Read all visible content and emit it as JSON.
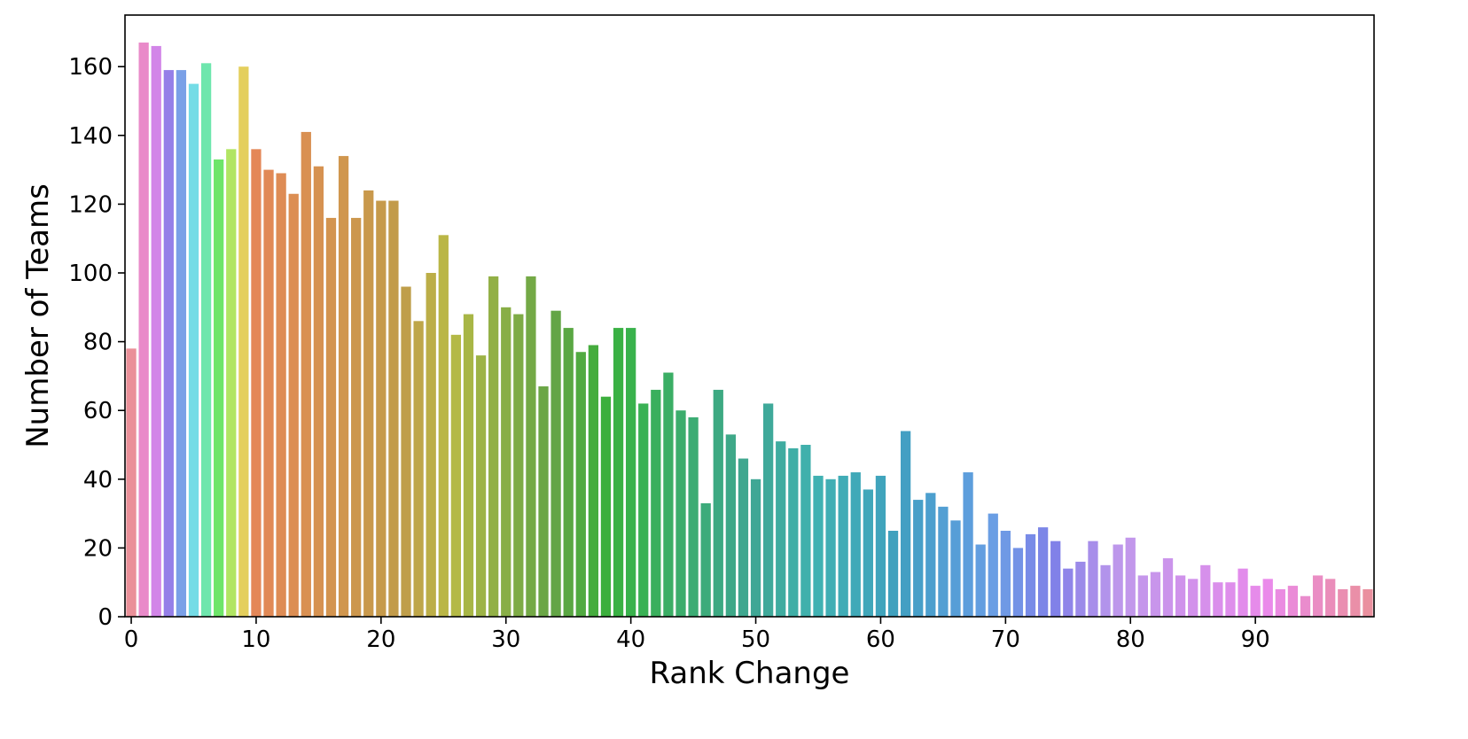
{
  "chart_data": {
    "type": "bar",
    "title": "",
    "xlabel": "Rank Change",
    "ylabel": "Number of Teams",
    "xlim": [
      -0.5,
      99.5
    ],
    "ylim": [
      0,
      175
    ],
    "grid": false,
    "x_ticks": [
      0,
      10,
      20,
      30,
      40,
      50,
      60,
      70,
      80,
      90
    ],
    "y_ticks": [
      0,
      20,
      40,
      60,
      80,
      100,
      120,
      140,
      160
    ],
    "x": [
      0,
      1,
      2,
      3,
      4,
      5,
      6,
      7,
      8,
      9,
      10,
      11,
      12,
      13,
      14,
      15,
      16,
      17,
      18,
      19,
      20,
      21,
      22,
      23,
      24,
      25,
      26,
      27,
      28,
      29,
      30,
      31,
      32,
      33,
      34,
      35,
      36,
      37,
      38,
      39,
      40,
      41,
      42,
      43,
      44,
      45,
      46,
      47,
      48,
      49,
      50,
      51,
      52,
      53,
      54,
      55,
      56,
      57,
      58,
      59,
      60,
      61,
      62,
      63,
      64,
      65,
      66,
      67,
      68,
      69,
      70,
      71,
      72,
      73,
      74,
      75,
      76,
      77,
      78,
      79,
      80,
      81,
      82,
      83,
      84,
      85,
      86,
      87,
      88,
      89,
      90,
      91,
      92,
      93,
      94,
      95,
      96,
      97,
      98,
      99
    ],
    "values": [
      78,
      167,
      166,
      159,
      159,
      155,
      161,
      133,
      136,
      160,
      136,
      130,
      129,
      123,
      141,
      131,
      116,
      134,
      116,
      124,
      121,
      121,
      96,
      86,
      100,
      111,
      82,
      88,
      76,
      99,
      90,
      88,
      99,
      67,
      89,
      84,
      77,
      79,
      64,
      84,
      84,
      62,
      66,
      71,
      60,
      58,
      33,
      66,
      53,
      46,
      40,
      62,
      51,
      49,
      50,
      41,
      40,
      41,
      42,
      37,
      41,
      25,
      54,
      34,
      36,
      32,
      28,
      42,
      21,
      30,
      25,
      20,
      24,
      26,
      22,
      14,
      16,
      22,
      15,
      21,
      23,
      12,
      13,
      17,
      12,
      11,
      15,
      10,
      10,
      14,
      9,
      11,
      8,
      9,
      6,
      12,
      11,
      8,
      9,
      8
    ],
    "palette": {
      "type": "husl-rainbow",
      "start_color": "#e8929b",
      "mid_color": "#3aa94f",
      "end_color": "#e58fc3"
    }
  }
}
